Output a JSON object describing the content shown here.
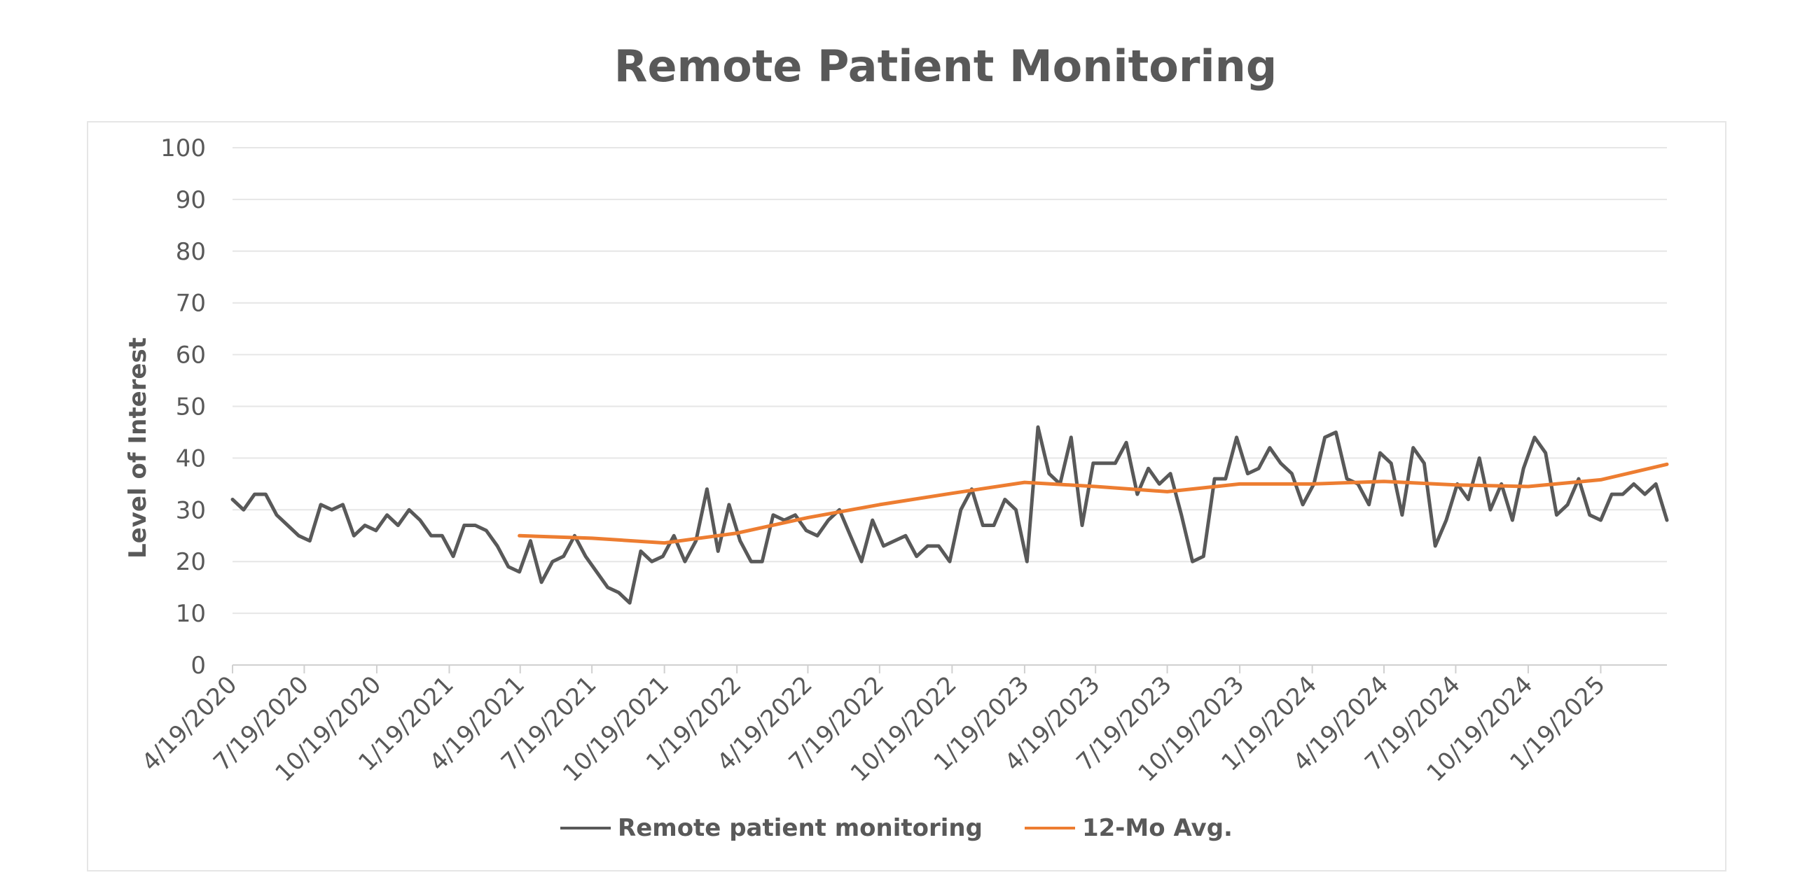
{
  "chart_data": {
    "type": "line",
    "title": "Remote Patient Monitoring",
    "ylabel": "Level of Interest",
    "xlabel": "",
    "ylim": [
      0,
      100
    ],
    "yticks": [
      0,
      10,
      20,
      30,
      40,
      50,
      60,
      70,
      80,
      90,
      100
    ],
    "xlim": [
      "2020-04-19",
      "2025-04-13"
    ],
    "xtick_labels": [
      "4/19/2020",
      "7/19/2020",
      "10/19/2020",
      "1/19/2021",
      "4/19/2021",
      "7/19/2021",
      "10/19/2021",
      "1/19/2022",
      "4/19/2022",
      "7/19/2022",
      "10/19/2022",
      "1/19/2023",
      "4/19/2023",
      "7/19/2023",
      "10/19/2023",
      "1/19/2024",
      "4/19/2024",
      "7/19/2024",
      "10/19/2024",
      "1/19/2025"
    ],
    "grid": true,
    "legend_position": "bottom",
    "series": [
      {
        "name": "Remote patient monitoring",
        "color": "#595959",
        "points": [
          [
            "2020-04-19",
            32
          ],
          [
            "2020-05-03",
            30
          ],
          [
            "2020-05-17",
            33
          ],
          [
            "2020-05-31",
            33
          ],
          [
            "2020-06-14",
            29
          ],
          [
            "2020-06-28",
            27
          ],
          [
            "2020-07-12",
            25
          ],
          [
            "2020-07-26",
            24
          ],
          [
            "2020-08-09",
            31
          ],
          [
            "2020-08-23",
            30
          ],
          [
            "2020-09-06",
            31
          ],
          [
            "2020-09-20",
            25
          ],
          [
            "2020-10-04",
            27
          ],
          [
            "2020-10-18",
            26
          ],
          [
            "2020-11-01",
            29
          ],
          [
            "2020-11-15",
            27
          ],
          [
            "2020-11-29",
            30
          ],
          [
            "2020-12-13",
            28
          ],
          [
            "2020-12-27",
            25
          ],
          [
            "2021-01-10",
            25
          ],
          [
            "2021-01-24",
            21
          ],
          [
            "2021-02-07",
            27
          ],
          [
            "2021-02-21",
            27
          ],
          [
            "2021-03-07",
            26
          ],
          [
            "2021-03-21",
            23
          ],
          [
            "2021-04-04",
            19
          ],
          [
            "2021-04-18",
            18
          ],
          [
            "2021-05-02",
            24
          ],
          [
            "2021-05-16",
            16
          ],
          [
            "2021-05-30",
            20
          ],
          [
            "2021-06-13",
            21
          ],
          [
            "2021-06-27",
            25
          ],
          [
            "2021-07-11",
            21
          ],
          [
            "2021-07-25",
            18
          ],
          [
            "2021-08-08",
            15
          ],
          [
            "2021-08-22",
            14
          ],
          [
            "2021-09-05",
            12
          ],
          [
            "2021-09-19",
            22
          ],
          [
            "2021-10-03",
            20
          ],
          [
            "2021-10-17",
            21
          ],
          [
            "2021-10-31",
            25
          ],
          [
            "2021-11-14",
            20
          ],
          [
            "2021-11-28",
            24
          ],
          [
            "2021-12-12",
            34
          ],
          [
            "2021-12-26",
            22
          ],
          [
            "2022-01-09",
            31
          ],
          [
            "2022-01-23",
            24
          ],
          [
            "2022-02-06",
            20
          ],
          [
            "2022-02-20",
            20
          ],
          [
            "2022-03-06",
            29
          ],
          [
            "2022-03-20",
            28
          ],
          [
            "2022-04-03",
            29
          ],
          [
            "2022-04-17",
            26
          ],
          [
            "2022-05-01",
            25
          ],
          [
            "2022-05-15",
            28
          ],
          [
            "2022-05-29",
            30
          ],
          [
            "2022-06-12",
            25
          ],
          [
            "2022-06-26",
            20
          ],
          [
            "2022-07-10",
            28
          ],
          [
            "2022-07-24",
            23
          ],
          [
            "2022-08-07",
            24
          ],
          [
            "2022-08-21",
            25
          ],
          [
            "2022-09-04",
            21
          ],
          [
            "2022-09-18",
            23
          ],
          [
            "2022-10-02",
            23
          ],
          [
            "2022-10-16",
            20
          ],
          [
            "2022-10-30",
            30
          ],
          [
            "2022-11-13",
            34
          ],
          [
            "2022-11-27",
            27
          ],
          [
            "2022-12-11",
            27
          ],
          [
            "2022-12-25",
            32
          ],
          [
            "2023-01-08",
            30
          ],
          [
            "2023-01-22",
            20
          ],
          [
            "2023-02-05",
            46
          ],
          [
            "2023-02-19",
            37
          ],
          [
            "2023-03-05",
            35
          ],
          [
            "2023-03-19",
            44
          ],
          [
            "2023-04-02",
            27
          ],
          [
            "2023-04-16",
            39
          ],
          [
            "2023-04-30",
            39
          ],
          [
            "2023-05-14",
            39
          ],
          [
            "2023-05-28",
            43
          ],
          [
            "2023-06-11",
            33
          ],
          [
            "2023-06-25",
            38
          ],
          [
            "2023-07-09",
            35
          ],
          [
            "2023-07-23",
            37
          ],
          [
            "2023-08-06",
            29
          ],
          [
            "2023-08-20",
            20
          ],
          [
            "2023-09-03",
            21
          ],
          [
            "2023-09-17",
            36
          ],
          [
            "2023-10-01",
            36
          ],
          [
            "2023-10-15",
            44
          ],
          [
            "2023-10-29",
            37
          ],
          [
            "2023-11-12",
            38
          ],
          [
            "2023-11-26",
            42
          ],
          [
            "2023-12-10",
            39
          ],
          [
            "2023-12-24",
            37
          ],
          [
            "2024-01-07",
            31
          ],
          [
            "2024-01-21",
            35
          ],
          [
            "2024-02-04",
            44
          ],
          [
            "2024-02-18",
            45
          ],
          [
            "2024-03-03",
            36
          ],
          [
            "2024-03-17",
            35
          ],
          [
            "2024-03-31",
            31
          ],
          [
            "2024-04-14",
            41
          ],
          [
            "2024-04-28",
            39
          ],
          [
            "2024-05-12",
            29
          ],
          [
            "2024-05-26",
            42
          ],
          [
            "2024-06-09",
            39
          ],
          [
            "2024-06-23",
            23
          ],
          [
            "2024-07-07",
            28
          ],
          [
            "2024-07-21",
            35
          ],
          [
            "2024-08-04",
            32
          ],
          [
            "2024-08-18",
            40
          ],
          [
            "2024-09-01",
            30
          ],
          [
            "2024-09-15",
            35
          ],
          [
            "2024-09-29",
            28
          ],
          [
            "2024-10-13",
            38
          ],
          [
            "2024-10-27",
            44
          ],
          [
            "2024-11-10",
            41
          ],
          [
            "2024-11-24",
            29
          ],
          [
            "2024-12-08",
            31
          ],
          [
            "2024-12-22",
            36
          ],
          [
            "2025-01-05",
            29
          ],
          [
            "2025-01-19",
            28
          ],
          [
            "2025-02-02",
            33
          ],
          [
            "2025-02-16",
            33
          ],
          [
            "2025-03-02",
            35
          ],
          [
            "2025-03-16",
            33
          ],
          [
            "2025-03-30",
            35
          ],
          [
            "2025-04-13",
            28
          ]
        ]
      },
      {
        "name": "12-Mo Avg.",
        "color": "#ed7d31",
        "points": [
          [
            "2021-04-18",
            25
          ],
          [
            "2021-07-19",
            24.5
          ],
          [
            "2021-10-19",
            23.6
          ],
          [
            "2022-01-19",
            25.5
          ],
          [
            "2022-04-19",
            28.5
          ],
          [
            "2022-07-19",
            31
          ],
          [
            "2022-10-19",
            33.2
          ],
          [
            "2023-01-19",
            35.3
          ],
          [
            "2023-04-19",
            34.5
          ],
          [
            "2023-07-19",
            33.5
          ],
          [
            "2023-10-19",
            35
          ],
          [
            "2024-01-19",
            35
          ],
          [
            "2024-04-19",
            35.5
          ],
          [
            "2024-07-19",
            34.8
          ],
          [
            "2024-10-19",
            34.5
          ],
          [
            "2025-01-19",
            35.8
          ],
          [
            "2025-04-13",
            38.8
          ]
        ]
      }
    ]
  }
}
